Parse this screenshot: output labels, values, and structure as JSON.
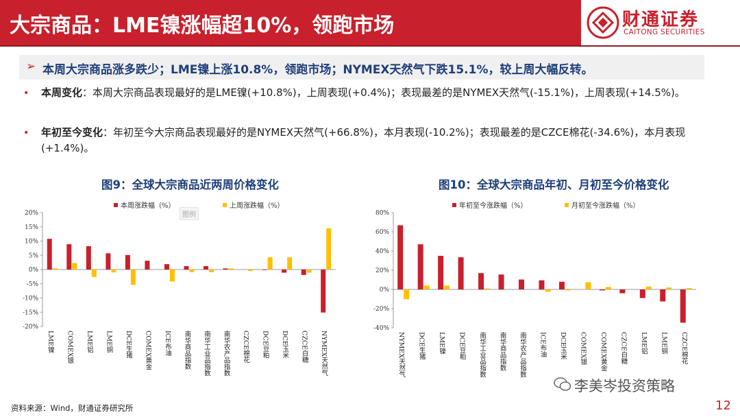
{
  "header": {
    "title": "大宗商品：LME镍涨幅超10%，领跑市场",
    "logo_cn": "财通证券",
    "logo_en": "CAITONG SECURITIES"
  },
  "summary": {
    "arrow": "➢",
    "text": "本周大宗商品涨多跌少；LME镍上涨10.8%，领跑市场；NYMEX天然气下跌15.1%，较上周大幅反转。"
  },
  "bullets": [
    {
      "marker": "•",
      "label": "本周变化",
      "text": "：本周大宗商品表现最好的是LME镍(+10.8%)，上周表现(+0.4%)；表现最差的是NYMEX天然气(-15.1%)，上周表现(+14.5%)。"
    },
    {
      "marker": "•",
      "label": "年初至今变化",
      "text": "：年初至今大宗商品表现最好的是NYMEX天然气(+66.8%)，本月表现(-10.2%)；表现最差的是CZCE棉花(-34.6%)，本月表现(+1.4%)。"
    }
  ],
  "colors": {
    "red": "#c8202c",
    "yellow": "#ffc000",
    "navy": "#1f3f7a"
  },
  "legend_tip": "图例",
  "chart_data": [
    {
      "type": "bar",
      "title": "图9：全球大宗商品近两周价格变化",
      "categories": [
        "LME镍",
        "COMEX银",
        "LME铝",
        "LME铜",
        "DCE生猪",
        "COMEX黄金",
        "ICE布油",
        "南华商品指数",
        "南华工业品指数",
        "南华农产品指数",
        "CZCE棉花",
        "DCE豆粕",
        "DCE玉米",
        "CZCE白糖",
        "NYMEX天然气"
      ],
      "series": [
        {
          "name": "本周涨跌幅（%）",
          "values": [
            10.8,
            8.9,
            8.2,
            5.7,
            5.1,
            3.1,
            1.9,
            1.2,
            1.2,
            0.4,
            0.0,
            -0.2,
            -1.1,
            -1.9,
            -15.1
          ]
        },
        {
          "name": "上周涨跌幅（%）",
          "values": [
            0.4,
            2.3,
            -2.6,
            -1.0,
            -5.4,
            0.0,
            -4.2,
            -0.9,
            -0.9,
            0.4,
            -0.5,
            4.3,
            4.3,
            -1.1,
            14.5
          ]
        }
      ],
      "ylim": [
        -20,
        20
      ],
      "yticks": [
        "20%",
        "15%",
        "10%",
        "5%",
        "0%",
        "-5%",
        "-10%",
        "-15%",
        "-20%"
      ],
      "ytick_values": [
        20,
        15,
        10,
        5,
        0,
        -5,
        -10,
        -15,
        -20
      ],
      "legend": "top"
    },
    {
      "type": "bar",
      "title": "图10：全球大宗商品年初、月初至今价格变化",
      "categories": [
        "NYMEX天然气",
        "DCE生猪",
        "LME镍",
        "DCE豆粕",
        "南华工业品指数",
        "南华商品指数",
        "南华农产品指数",
        "ICE布油",
        "DCE玉米",
        "COMEX银",
        "COMEX黄金",
        "CZCE白糖",
        "LME铝",
        "LME铜",
        "CZCE棉花"
      ],
      "series": [
        {
          "name": "年初至今涨跌幅（%）",
          "values": [
            66.8,
            47.0,
            35.0,
            33.5,
            17.0,
            15.5,
            10.3,
            9.5,
            8.0,
            0.0,
            -1.0,
            -4.0,
            -9.0,
            -12.5,
            -34.6
          ]
        },
        {
          "name": "月初至今涨跌幅（%）",
          "values": [
            -10.2,
            4.0,
            4.0,
            0.0,
            1.0,
            0.0,
            0.0,
            -2.5,
            -1.0,
            7.5,
            2.5,
            0.0,
            3.0,
            2.0,
            1.4
          ]
        }
      ],
      "ylim": [
        -40,
        80
      ],
      "yticks": [
        "80%",
        "60%",
        "40%",
        "20%",
        "0%",
        "-20%",
        "-40%"
      ],
      "ytick_values": [
        80,
        60,
        40,
        20,
        0,
        -20,
        -40
      ],
      "legend": "top"
    }
  ],
  "footer": {
    "source": "资料来源：Wind，财通证券研究所",
    "watermark": "李美岑投资策略",
    "page_number": "12"
  }
}
